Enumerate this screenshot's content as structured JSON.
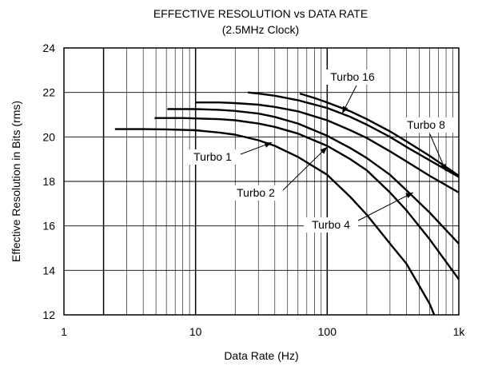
{
  "chart_data": {
    "type": "line",
    "title": "EFFECTIVE RESOLUTION vs DATA RATE",
    "subtitle": "(2.5MHz Clock)",
    "xlabel": "Data Rate (Hz)",
    "ylabel": "Effective Resolution in Bits (rms)",
    "x_scale": "log",
    "xlim": [
      1,
      1000
    ],
    "ylim": [
      12,
      24
    ],
    "x_tick_labels": [
      "1",
      "10",
      "100",
      "1k"
    ],
    "x_tick_values": [
      1,
      10,
      100,
      1000
    ],
    "y_ticks": [
      12,
      14,
      16,
      18,
      20,
      22,
      24
    ],
    "grid": true,
    "series": [
      {
        "name": "Turbo 1",
        "x": [
          2.44,
          4,
          6,
          10,
          15,
          20,
          30,
          40,
          60,
          100,
          150,
          200,
          300,
          400,
          600,
          650
        ],
        "y": [
          20.35,
          20.35,
          20.34,
          20.3,
          20.2,
          20.1,
          19.85,
          19.6,
          19.1,
          18.3,
          17.3,
          16.5,
          15.2,
          14.3,
          12.5,
          12.0
        ]
      },
      {
        "name": "Turbo 2",
        "x": [
          4.88,
          8,
          10,
          15,
          20,
          30,
          40,
          60,
          100,
          150,
          200,
          300,
          400,
          600,
          1000
        ],
        "y": [
          20.85,
          20.85,
          20.83,
          20.8,
          20.75,
          20.6,
          20.45,
          20.15,
          19.6,
          19.0,
          18.5,
          17.5,
          16.7,
          15.4,
          13.6
        ]
      },
      {
        "name": "Turbo 4",
        "x": [
          6.1,
          10,
          15,
          20,
          30,
          40,
          60,
          100,
          150,
          200,
          300,
          400,
          600,
          1000
        ],
        "y": [
          21.25,
          21.25,
          21.22,
          21.17,
          21.05,
          20.9,
          20.6,
          20.05,
          19.5,
          19.05,
          18.3,
          17.6,
          16.6,
          15.2
        ]
      },
      {
        "name": "Turbo 8",
        "x": [
          10,
          15,
          20,
          30,
          40,
          60,
          100,
          150,
          200,
          300,
          400,
          600,
          1000
        ],
        "y": [
          21.55,
          21.55,
          21.52,
          21.45,
          21.35,
          21.15,
          20.75,
          20.3,
          19.95,
          19.35,
          18.9,
          18.25,
          17.5
        ]
      },
      {
        "name": "Turbo 16",
        "x": [
          25,
          30,
          40,
          60,
          100,
          150,
          200,
          300,
          400,
          600,
          1000
        ],
        "y": [
          22.0,
          21.95,
          21.85,
          21.65,
          21.3,
          20.9,
          20.55,
          20.0,
          19.55,
          18.95,
          18.2
        ]
      },
      {
        "name": "",
        "x": [
          62,
          80,
          100,
          150,
          200,
          300,
          400,
          600,
          1000
        ],
        "y": [
          21.95,
          21.75,
          21.55,
          21.15,
          20.8,
          20.25,
          19.8,
          19.15,
          18.25
        ]
      }
    ],
    "annotations": [
      {
        "text": "Turbo 1",
        "arrow_to": {
          "x": 38,
          "y": 19.75
        }
      },
      {
        "text": "Turbo 2",
        "arrow_to": {
          "x": 100,
          "y": 19.55
        }
      },
      {
        "text": "Turbo 4",
        "arrow_to": {
          "x": 450,
          "y": 17.5
        }
      },
      {
        "text": "Turbo 8",
        "arrow_to": {
          "x": 800,
          "y": 18.45
        }
      },
      {
        "text": "Turbo 16",
        "arrow_to": {
          "x": 130,
          "y": 21.05
        }
      }
    ]
  }
}
